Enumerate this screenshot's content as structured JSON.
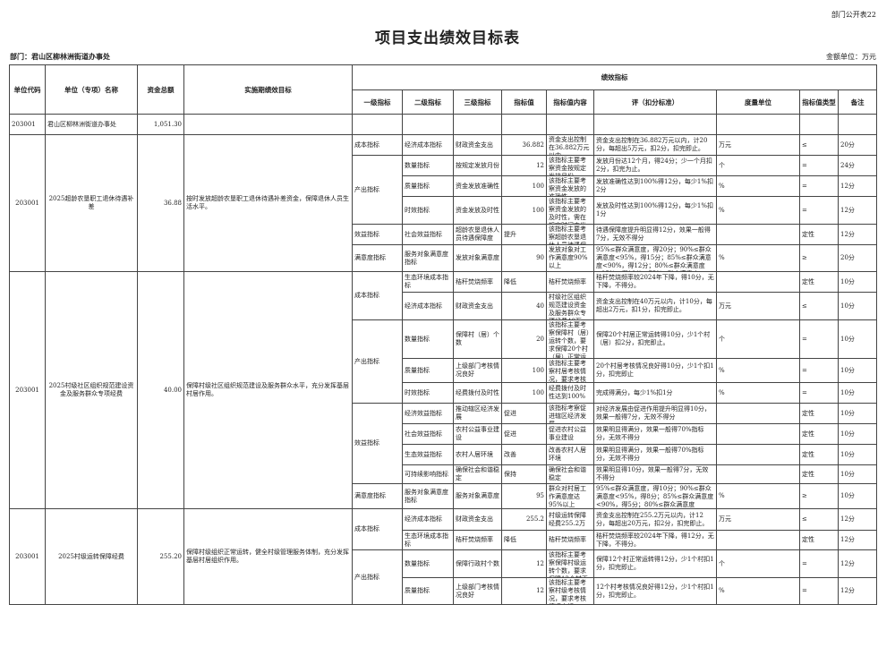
{
  "form_no": "部门公开表22",
  "title": "项目支出绩效目标表",
  "department": "部门：君山区柳林洲街道办事处",
  "amount_unit": "金额单位：万元",
  "headers": {
    "code": "单位代码",
    "name": "单位（专项）名称",
    "amount": "资金总额",
    "goal": "实施期绩效目标",
    "indicators": "绩效指标",
    "l1": "一级指标",
    "l2": "二级指标",
    "l3": "三级指标",
    "value": "指标值",
    "content": "指标值内容",
    "criteria": "评（扣分标准）",
    "measure": "度量单位",
    "type": "指标值类型",
    "note": "备注"
  },
  "summary": {
    "code": "203001",
    "name": "君山区柳林洲街道办事处",
    "amount": "1,051.30"
  },
  "projects": [
    {
      "code": "203001",
      "name": "2025超龄农垦职工退休待遇补差",
      "amount": "36.88",
      "goal": "按时发放超龄农垦职工退休待遇补差资金，保障退休人员生活水平。",
      "groups": [
        {
          "l1": "成本指标",
          "rows": [
            {
              "l2": "经济成本指标",
              "l3": "财政资金支出",
              "value": "36.882",
              "content": "资金支出控制在36.882万元以内",
              "criteria": "资金支出控制在36.882万元以内，计20分，每超出5万元，扣2分，扣完即止。",
              "measure": "万元",
              "type": "≤",
              "note": "20分"
            }
          ]
        },
        {
          "l1": "产出指标",
          "rows": [
            {
              "l2": "数量指标",
              "l3": "按规定发放月份",
              "value": "12",
              "content": "该指标主要考察资金按规定发放月份。",
              "criteria": "发放月份达12个月，得24分；少一个月扣2分，扣完为止。",
              "measure": "个",
              "type": "=",
              "note": "24分"
            },
            {
              "l2": "质量指标",
              "l3": "资金发放准确性",
              "value": "100",
              "content": "该指标主要考察资金发放的准确性。",
              "criteria": "发放准确性达到100%得12分，每少1%扣2分",
              "measure": "%",
              "type": "=",
              "note": "12分"
            },
            {
              "l2": "时效指标",
              "l3": "资金发放及时性",
              "value": "100",
              "content": "该指标主要考察资金发放的及时性，需在规定时间内发放",
              "criteria": "发放及时性达到100%得12分，每少1%扣1分",
              "measure": "%",
              "type": "=",
              "note": "12分"
            }
          ]
        },
        {
          "l1": "效益指标",
          "rows": [
            {
              "l2": "社会效益指标",
              "l3": "超龄农垦退休人员待遇保障度",
              "value": "提升",
              "content": "该指标主要考察超龄农垦退休人员待遇保障度",
              "criteria": "待遇保障度提升明显得12分，效果一般得7分，无效不得分",
              "measure": "",
              "type": "定性",
              "note": "12分"
            }
          ]
        },
        {
          "l1": "满意度指标",
          "rows": [
            {
              "l2": "服务对象满意度指标",
              "l3": "发放对象满意度",
              "value": "90",
              "content": "发放对象对工作满意度90%以上",
              "criteria": "95%≤群众满意度，得20分；90%≤群众满意度<95%，得15分；85%≤群众满意度<90%，得12分；80%≤群众满意度<85%，得10分；75%≤群众满意度<80%，得5分。",
              "measure": "%",
              "type": "≥",
              "note": "20分"
            }
          ]
        }
      ]
    },
    {
      "code": "203001",
      "name": "2025村级社区组织规范建设资金及服务群众专项经费",
      "amount": "40.00",
      "goal": "保障村级社区组织规范建设及服务群众水平，充分发挥基层村居作用。",
      "groups": [
        {
          "l1": "成本指标",
          "rows": [
            {
              "l2": "生态环境成本指标",
              "l3": "秸秆焚烧频率",
              "value": "降低",
              "content": "秸秆焚烧频率",
              "criteria": "秸秆焚烧频率较2024年下降，得10分，无下降，不得分。",
              "measure": "",
              "type": "定性",
              "note": "10分"
            },
            {
              "l2": "经济成本指标",
              "l3": "财政资金支出",
              "value": "40",
              "content": "村级社区组织规范建设资金及服务群众专项经费40万",
              "criteria": "资金支出控制在40万元以内，计10分，每超出2万元，扣1分，扣完即止。",
              "measure": "万元",
              "type": "≤",
              "note": "10分"
            }
          ]
        },
        {
          "l1": "产出指标",
          "rows": [
            {
              "l2": "数量指标",
              "l3": "保障村（居）个数",
              "value": "20",
              "content": "该指标主要考察保障村（居）运转个数，要求保障20个村（居）正常运转",
              "criteria": "保障20个村居正常运转得10分，少1个村（居）扣2分，扣完即止。",
              "measure": "个",
              "type": "=",
              "note": "10分"
            },
            {
              "l2": "质量指标",
              "l3": "上级部门考核情况良好",
              "value": "100",
              "content": "该指标主要考察村居考核情况，要求考核情况良好",
              "criteria": "20个村居考核情况良好得10分，少1个扣1分，扣完即止",
              "measure": "%",
              "type": "=",
              "note": "10分"
            },
            {
              "l2": "时效指标",
              "l3": "经费拨付及时性",
              "value": "100",
              "content": "经费拨付及时性达到100%",
              "criteria": "完成得满分，每少1%扣1分",
              "measure": "%",
              "type": "=",
              "note": "10分"
            }
          ]
        },
        {
          "l1": "效益指标",
          "rows": [
            {
              "l2": "经济效益指标",
              "l3": "推动辖区经济发展",
              "value": "促进",
              "content": "该指标考察促进辖区经济发展",
              "criteria": "对经济发展由促进作用提升明显得10分，效果一般得7分，无效不得分",
              "measure": "",
              "type": "定性",
              "note": "10分"
            },
            {
              "l2": "社会效益指标",
              "l3": "农村公益事业建设",
              "value": "促进",
              "content": "促进农村公益事业建设",
              "criteria": "效果明显得满分，效果一般得70%指标分，无效不得分",
              "measure": "",
              "type": "定性",
              "note": "10分"
            },
            {
              "l2": "生态效益指标",
              "l3": "农村人居环境",
              "value": "改善",
              "content": "改善农村人居环境",
              "criteria": "效果明显得满分，效果一般得70%指标分，无效不得分",
              "measure": "",
              "type": "定性",
              "note": "10分"
            },
            {
              "l2": "可持续影响指标",
              "l3": "确保社会和谐稳定",
              "value": "保持",
              "content": "确保社会和谐稳定",
              "criteria": "效果明显得10分，效果一般得7分，无效不得分",
              "measure": "",
              "type": "定性",
              "note": "10分"
            }
          ]
        },
        {
          "l1": "满意度指标",
          "rows": [
            {
              "l2": "服务对象满意度指标",
              "l3": "服务对象满意度",
              "value": "95",
              "content": "群众对村居工作满意度达95%以上",
              "criteria": "95%≤群众满意度，得10分；90%≤群众满意度<95%，得8分；85%≤群众满意度<90%，得5分；80%≤群众满意度<85%，得3分；75%≤群众满意度<80%，得1分。",
              "measure": "%",
              "type": "≥",
              "note": "10分"
            }
          ]
        }
      ]
    },
    {
      "code": "203001",
      "name": "2025村级运转保障经费",
      "amount": "255.20",
      "goal": "保障村级组织正常运转，健全村级管理服务体制，充分发挥基层村居组织作用。",
      "groups": [
        {
          "l1": "成本指标",
          "rows": [
            {
              "l2": "经济成本指标",
              "l3": "财政资金支出",
              "value": "255.2",
              "content": "村级运转保障经费255.2万",
              "criteria": "资金支出控制在255.2万元以内，计12分，每超出20万元，扣2分，扣完即止。",
              "measure": "万元",
              "type": "≤",
              "note": "12分"
            },
            {
              "l2": "生态环境成本指标",
              "l3": "秸秆焚烧频率",
              "value": "降低",
              "content": "秸秆焚烧频率",
              "criteria": "秸秆焚烧频率较2024年下降，得12分，无下降，不得分。",
              "measure": "",
              "type": "定性",
              "note": "12分"
            }
          ]
        },
        {
          "l1": "产出指标",
          "rows": [
            {
              "l2": "数量指标",
              "l3": "保障行政村个数",
              "value": "12",
              "content": "该指标主要考察保障村级运转个数，要求保障12个村正常运转",
              "criteria": "保障12个村正常运转得12分，少1个村扣1分，扣完即止。",
              "measure": "个",
              "type": "=",
              "note": "12分"
            },
            {
              "l2": "质量指标",
              "l3": "上级部门考核情况良好",
              "value": "12",
              "content": "该指标主要考察村级考核情况，要求考核情况良好",
              "criteria": "12个村考核情况良好得12分，少1个村扣1分，扣完即止。",
              "measure": "%",
              "type": "=",
              "note": "12分"
            }
          ]
        }
      ]
    }
  ]
}
